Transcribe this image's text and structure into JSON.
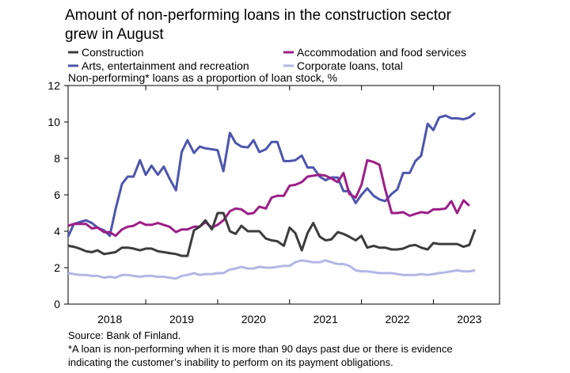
{
  "chart_data": {
    "type": "line",
    "title": "Amount of non-performing loans in the construction sector grew in August",
    "subtitle": "Non-performing* loans as a proportion of loan stock, %",
    "xlabel": "",
    "ylabel": "",
    "ylim": [
      0,
      12
    ],
    "yticks": [
      "0",
      "2",
      "4",
      "6",
      "8",
      "10",
      "12"
    ],
    "xlim": [
      2017.92,
      2023.92
    ],
    "xticks": [
      "2018",
      "2019",
      "2020",
      "2021",
      "2022",
      "2023"
    ],
    "grid": false,
    "legend_position": "top",
    "series": [
      {
        "name": "Construction",
        "color": "#3c3c3c",
        "points": [
          [
            2017.92,
            3.2
          ],
          [
            2018.0,
            3.15
          ],
          [
            2018.08,
            3.05
          ],
          [
            2018.17,
            2.9
          ],
          [
            2018.25,
            2.85
          ],
          [
            2018.33,
            2.95
          ],
          [
            2018.42,
            2.75
          ],
          [
            2018.5,
            2.8
          ],
          [
            2018.58,
            2.85
          ],
          [
            2018.67,
            3.1
          ],
          [
            2018.75,
            3.1
          ],
          [
            2018.83,
            3.05
          ],
          [
            2018.92,
            2.95
          ],
          [
            2019.0,
            3.05
          ],
          [
            2019.08,
            3.05
          ],
          [
            2019.17,
            2.9
          ],
          [
            2019.25,
            2.85
          ],
          [
            2019.33,
            2.8
          ],
          [
            2019.42,
            2.75
          ],
          [
            2019.5,
            2.65
          ],
          [
            2019.58,
            2.65
          ],
          [
            2019.67,
            4.05
          ],
          [
            2019.75,
            4.25
          ],
          [
            2019.83,
            4.6
          ],
          [
            2019.92,
            4.1
          ],
          [
            2020.0,
            5.0
          ],
          [
            2020.08,
            5.0
          ],
          [
            2020.17,
            4.0
          ],
          [
            2020.25,
            3.85
          ],
          [
            2020.33,
            4.3
          ],
          [
            2020.42,
            4.0
          ],
          [
            2020.5,
            4.0
          ],
          [
            2020.58,
            4.0
          ],
          [
            2020.67,
            3.6
          ],
          [
            2020.75,
            3.5
          ],
          [
            2020.83,
            3.45
          ],
          [
            2020.92,
            3.2
          ],
          [
            2021.0,
            4.2
          ],
          [
            2021.08,
            3.9
          ],
          [
            2021.17,
            2.95
          ],
          [
            2021.25,
            3.9
          ],
          [
            2021.33,
            4.45
          ],
          [
            2021.42,
            3.7
          ],
          [
            2021.5,
            3.5
          ],
          [
            2021.58,
            3.55
          ],
          [
            2021.67,
            3.95
          ],
          [
            2021.75,
            3.85
          ],
          [
            2021.83,
            3.7
          ],
          [
            2021.92,
            3.5
          ],
          [
            2022.0,
            3.75
          ],
          [
            2022.08,
            3.1
          ],
          [
            2022.17,
            3.2
          ],
          [
            2022.25,
            3.1
          ],
          [
            2022.33,
            3.1
          ],
          [
            2022.42,
            3.0
          ],
          [
            2022.5,
            3.0
          ],
          [
            2022.58,
            3.05
          ],
          [
            2022.67,
            3.2
          ],
          [
            2022.75,
            3.25
          ],
          [
            2022.83,
            3.1
          ],
          [
            2022.92,
            3.0
          ],
          [
            2023.0,
            3.35
          ],
          [
            2023.08,
            3.3
          ],
          [
            2023.17,
            3.3
          ],
          [
            2023.25,
            3.3
          ],
          [
            2023.33,
            3.3
          ],
          [
            2023.42,
            3.15
          ],
          [
            2023.5,
            3.25
          ],
          [
            2023.58,
            4.1
          ]
        ]
      },
      {
        "name": "Accommodation and food services",
        "color": "#9c1f86",
        "points": [
          [
            2017.92,
            4.3
          ],
          [
            2018.0,
            4.4
          ],
          [
            2018.08,
            4.4
          ],
          [
            2018.17,
            4.4
          ],
          [
            2018.25,
            4.15
          ],
          [
            2018.33,
            4.2
          ],
          [
            2018.42,
            3.95
          ],
          [
            2018.5,
            3.95
          ],
          [
            2018.58,
            3.75
          ],
          [
            2018.67,
            4.1
          ],
          [
            2018.75,
            4.25
          ],
          [
            2018.83,
            4.3
          ],
          [
            2018.92,
            4.5
          ],
          [
            2019.0,
            4.35
          ],
          [
            2019.08,
            4.35
          ],
          [
            2019.17,
            4.45
          ],
          [
            2019.25,
            4.35
          ],
          [
            2019.33,
            4.25
          ],
          [
            2019.42,
            3.95
          ],
          [
            2019.5,
            4.1
          ],
          [
            2019.58,
            4.1
          ],
          [
            2019.67,
            4.25
          ],
          [
            2019.75,
            4.25
          ],
          [
            2019.83,
            4.5
          ],
          [
            2019.92,
            4.2
          ],
          [
            2020.0,
            4.35
          ],
          [
            2020.08,
            4.6
          ],
          [
            2020.17,
            5.1
          ],
          [
            2020.25,
            5.25
          ],
          [
            2020.33,
            5.2
          ],
          [
            2020.42,
            4.95
          ],
          [
            2020.5,
            5.0
          ],
          [
            2020.58,
            5.35
          ],
          [
            2020.67,
            5.25
          ],
          [
            2020.75,
            5.85
          ],
          [
            2020.83,
            5.95
          ],
          [
            2020.92,
            5.95
          ],
          [
            2021.0,
            6.5
          ],
          [
            2021.08,
            6.55
          ],
          [
            2021.17,
            6.7
          ],
          [
            2021.25,
            7.0
          ],
          [
            2021.33,
            7.05
          ],
          [
            2021.42,
            7.1
          ],
          [
            2021.5,
            7.05
          ],
          [
            2021.58,
            6.9
          ],
          [
            2021.67,
            6.7
          ],
          [
            2021.75,
            7.2
          ],
          [
            2021.83,
            6.05
          ],
          [
            2021.92,
            5.85
          ],
          [
            2022.0,
            6.55
          ],
          [
            2022.08,
            7.9
          ],
          [
            2022.17,
            7.8
          ],
          [
            2022.25,
            7.65
          ],
          [
            2022.33,
            6.3
          ],
          [
            2022.42,
            5.0
          ],
          [
            2022.5,
            5.0
          ],
          [
            2022.58,
            5.05
          ],
          [
            2022.67,
            4.85
          ],
          [
            2022.75,
            4.95
          ],
          [
            2022.83,
            5.05
          ],
          [
            2022.92,
            5.0
          ],
          [
            2023.0,
            5.2
          ],
          [
            2023.08,
            5.2
          ],
          [
            2023.17,
            5.25
          ],
          [
            2023.25,
            5.65
          ],
          [
            2023.33,
            5.0
          ],
          [
            2023.42,
            5.7
          ],
          [
            2023.5,
            5.4
          ]
        ]
      },
      {
        "name": "Arts, entertainment and recreation",
        "color": "#4d55ad",
        "points": [
          [
            2017.92,
            3.7
          ],
          [
            2018.0,
            4.4
          ],
          [
            2018.08,
            4.5
          ],
          [
            2018.17,
            4.6
          ],
          [
            2018.25,
            4.45
          ],
          [
            2018.33,
            4.2
          ],
          [
            2018.42,
            4.05
          ],
          [
            2018.5,
            3.75
          ],
          [
            2018.58,
            5.2
          ],
          [
            2018.67,
            6.6
          ],
          [
            2018.75,
            7.0
          ],
          [
            2018.83,
            7.0
          ],
          [
            2018.92,
            7.9
          ],
          [
            2019.0,
            7.1
          ],
          [
            2019.08,
            7.6
          ],
          [
            2019.17,
            7.1
          ],
          [
            2019.25,
            7.55
          ],
          [
            2019.33,
            6.9
          ],
          [
            2019.42,
            6.25
          ],
          [
            2019.5,
            8.35
          ],
          [
            2019.58,
            9.0
          ],
          [
            2019.67,
            8.3
          ],
          [
            2019.75,
            8.65
          ],
          [
            2019.83,
            8.55
          ],
          [
            2019.92,
            8.5
          ],
          [
            2020.0,
            8.45
          ],
          [
            2020.08,
            7.3
          ],
          [
            2020.17,
            9.4
          ],
          [
            2020.25,
            8.85
          ],
          [
            2020.33,
            8.65
          ],
          [
            2020.42,
            8.6
          ],
          [
            2020.5,
            9.0
          ],
          [
            2020.58,
            8.35
          ],
          [
            2020.67,
            8.5
          ],
          [
            2020.75,
            8.9
          ],
          [
            2020.83,
            8.9
          ],
          [
            2020.92,
            7.85
          ],
          [
            2021.0,
            7.85
          ],
          [
            2021.08,
            7.9
          ],
          [
            2021.17,
            8.15
          ],
          [
            2021.25,
            7.5
          ],
          [
            2021.33,
            7.5
          ],
          [
            2021.42,
            7.0
          ],
          [
            2021.5,
            6.8
          ],
          [
            2021.58,
            6.95
          ],
          [
            2021.67,
            6.95
          ],
          [
            2021.75,
            6.2
          ],
          [
            2021.83,
            6.2
          ],
          [
            2021.92,
            5.55
          ],
          [
            2022.0,
            6.0
          ],
          [
            2022.08,
            6.35
          ],
          [
            2022.17,
            5.95
          ],
          [
            2022.25,
            5.75
          ],
          [
            2022.33,
            5.65
          ],
          [
            2022.42,
            6.05
          ],
          [
            2022.5,
            6.3
          ],
          [
            2022.58,
            7.2
          ],
          [
            2022.67,
            7.2
          ],
          [
            2022.75,
            7.85
          ],
          [
            2022.83,
            8.15
          ],
          [
            2022.92,
            9.9
          ],
          [
            2023.0,
            9.55
          ],
          [
            2023.08,
            10.25
          ],
          [
            2023.17,
            10.35
          ],
          [
            2023.25,
            10.2
          ],
          [
            2023.33,
            10.2
          ],
          [
            2023.42,
            10.15
          ],
          [
            2023.5,
            10.25
          ],
          [
            2023.58,
            10.5
          ]
        ]
      },
      {
        "name": "Corporate loans, total",
        "color": "#b3b6e4",
        "points": [
          [
            2017.92,
            1.7
          ],
          [
            2018.0,
            1.65
          ],
          [
            2018.08,
            1.6
          ],
          [
            2018.17,
            1.6
          ],
          [
            2018.25,
            1.55
          ],
          [
            2018.33,
            1.55
          ],
          [
            2018.42,
            1.45
          ],
          [
            2018.5,
            1.5
          ],
          [
            2018.58,
            1.45
          ],
          [
            2018.67,
            1.6
          ],
          [
            2018.75,
            1.6
          ],
          [
            2018.83,
            1.55
          ],
          [
            2018.92,
            1.5
          ],
          [
            2019.0,
            1.55
          ],
          [
            2019.08,
            1.55
          ],
          [
            2019.17,
            1.5
          ],
          [
            2019.25,
            1.5
          ],
          [
            2019.33,
            1.45
          ],
          [
            2019.42,
            1.4
          ],
          [
            2019.5,
            1.55
          ],
          [
            2019.58,
            1.6
          ],
          [
            2019.67,
            1.7
          ],
          [
            2019.75,
            1.6
          ],
          [
            2019.83,
            1.65
          ],
          [
            2019.92,
            1.65
          ],
          [
            2020.0,
            1.7
          ],
          [
            2020.08,
            1.7
          ],
          [
            2020.17,
            1.9
          ],
          [
            2020.25,
            1.95
          ],
          [
            2020.33,
            2.05
          ],
          [
            2020.42,
            1.95
          ],
          [
            2020.5,
            1.95
          ],
          [
            2020.58,
            2.05
          ],
          [
            2020.67,
            2.0
          ],
          [
            2020.75,
            2.0
          ],
          [
            2020.83,
            2.05
          ],
          [
            2020.92,
            2.1
          ],
          [
            2021.0,
            2.1
          ],
          [
            2021.08,
            2.3
          ],
          [
            2021.17,
            2.4
          ],
          [
            2021.25,
            2.35
          ],
          [
            2021.33,
            2.3
          ],
          [
            2021.42,
            2.3
          ],
          [
            2021.5,
            2.4
          ],
          [
            2021.58,
            2.3
          ],
          [
            2021.67,
            2.2
          ],
          [
            2021.75,
            2.2
          ],
          [
            2021.83,
            2.1
          ],
          [
            2021.92,
            1.85
          ],
          [
            2022.0,
            1.8
          ],
          [
            2022.08,
            1.8
          ],
          [
            2022.17,
            1.75
          ],
          [
            2022.25,
            1.7
          ],
          [
            2022.33,
            1.7
          ],
          [
            2022.42,
            1.7
          ],
          [
            2022.5,
            1.65
          ],
          [
            2022.58,
            1.6
          ],
          [
            2022.67,
            1.6
          ],
          [
            2022.75,
            1.6
          ],
          [
            2022.83,
            1.65
          ],
          [
            2022.92,
            1.6
          ],
          [
            2023.0,
            1.65
          ],
          [
            2023.08,
            1.7
          ],
          [
            2023.17,
            1.75
          ],
          [
            2023.25,
            1.8
          ],
          [
            2023.33,
            1.85
          ],
          [
            2023.42,
            1.8
          ],
          [
            2023.5,
            1.8
          ],
          [
            2023.58,
            1.85
          ]
        ]
      }
    ]
  },
  "footer": {
    "source": "Source: Bank of Finland.",
    "note_line1": "*A loan is non-performing when it is more than 90 days past due or there is evidence",
    "note_line2": "indicating the customer’s inability to perform on its payment obligations."
  }
}
